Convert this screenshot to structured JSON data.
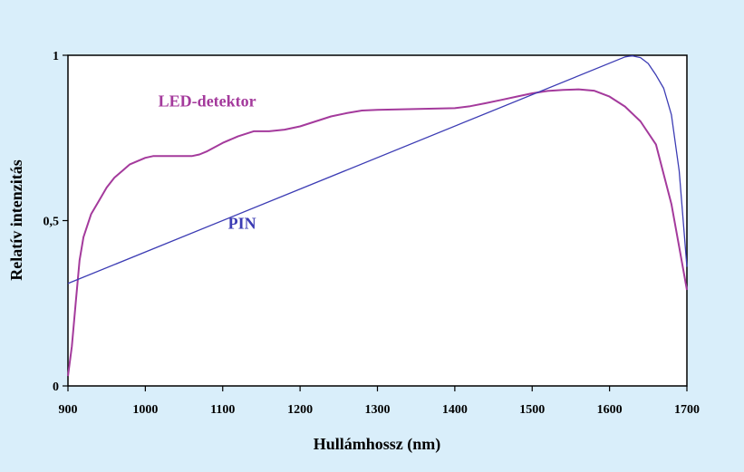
{
  "chart_data": {
    "type": "line",
    "xlabel": "Hullámhossz (nm)",
    "ylabel": "Relatív intenzitás",
    "xlim": [
      900,
      1700
    ],
    "ylim": [
      0,
      1
    ],
    "x_ticks": [
      "900",
      "1000",
      "1100",
      "1200",
      "1300",
      "1400",
      "1500",
      "1600",
      "1700"
    ],
    "y_ticks": [
      {
        "value": 0,
        "label": "0"
      },
      {
        "value": 0.5,
        "label": "0,5"
      },
      {
        "value": 1,
        "label": "1"
      }
    ],
    "grid": false,
    "series": [
      {
        "name": "LED-detektor",
        "color": "#a43a9c",
        "x": [
          900,
          905,
          910,
          915,
          920,
          930,
          940,
          950,
          960,
          970,
          980,
          990,
          1000,
          1010,
          1020,
          1040,
          1060,
          1070,
          1080,
          1100,
          1120,
          1140,
          1160,
          1180,
          1200,
          1220,
          1240,
          1260,
          1280,
          1300,
          1320,
          1340,
          1360,
          1380,
          1400,
          1420,
          1440,
          1460,
          1480,
          1500,
          1520,
          1540,
          1560,
          1580,
          1600,
          1620,
          1640,
          1660,
          1680,
          1690,
          1700
        ],
        "y": [
          0.03,
          0.12,
          0.25,
          0.38,
          0.45,
          0.52,
          0.56,
          0.6,
          0.63,
          0.65,
          0.67,
          0.68,
          0.69,
          0.695,
          0.695,
          0.695,
          0.695,
          0.7,
          0.71,
          0.735,
          0.755,
          0.77,
          0.77,
          0.775,
          0.785,
          0.8,
          0.815,
          0.825,
          0.833,
          0.835,
          0.836,
          0.837,
          0.838,
          0.839,
          0.84,
          0.846,
          0.855,
          0.865,
          0.875,
          0.885,
          0.892,
          0.895,
          0.897,
          0.893,
          0.875,
          0.845,
          0.8,
          0.73,
          0.55,
          0.42,
          0.29
        ]
      },
      {
        "name": "PIN",
        "color": "#3c3cb4",
        "x": [
          900,
          1620,
          1625,
          1630,
          1640,
          1650,
          1660,
          1670,
          1680,
          1690,
          1700
        ],
        "y": [
          0.31,
          0.995,
          0.997,
          0.998,
          0.993,
          0.975,
          0.94,
          0.9,
          0.82,
          0.65,
          0.36
        ]
      }
    ],
    "annotations": [
      {
        "text": "LED-detektor",
        "x": 1080,
        "y": 0.845,
        "color": "#a43a9c"
      },
      {
        "text": "PIN",
        "x": 1125,
        "y": 0.475,
        "color": "#3c3cb4"
      }
    ]
  }
}
